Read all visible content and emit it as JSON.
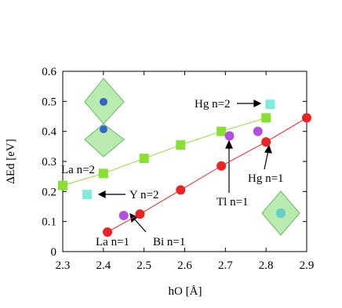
{
  "chart_data": {
    "type": "scatter",
    "xlabel": "hO [Å]",
    "ylabel": "ΔEd [eV]",
    "xlim": [
      2.3,
      2.9
    ],
    "ylim": [
      0,
      0.6
    ],
    "xticks": [
      2.3,
      2.4,
      2.5,
      2.6,
      2.7,
      2.8,
      2.9
    ],
    "yticks": [
      0,
      0.1,
      0.2,
      0.3,
      0.4,
      0.5,
      0.6
    ],
    "series": [
      {
        "color": "#ee2222",
        "marker": "circle",
        "line": true,
        "x": [
          2.41,
          2.49,
          2.59,
          2.69,
          2.8,
          2.9
        ],
        "values": [
          0.065,
          0.125,
          0.205,
          0.285,
          0.365,
          0.445
        ]
      },
      {
        "color": "#88e030",
        "marker": "square",
        "line": true,
        "x": [
          2.3,
          2.4,
          2.5,
          2.59,
          2.69,
          2.8
        ],
        "values": [
          0.22,
          0.26,
          0.31,
          0.355,
          0.4,
          0.445
        ]
      },
      {
        "color": "#b050e0",
        "marker": "circle",
        "line": false,
        "x": [
          2.45,
          2.71,
          2.78
        ],
        "values": [
          0.12,
          0.385,
          0.4
        ]
      },
      {
        "color": "#80ece0",
        "marker": "square",
        "line": false,
        "x": [
          2.36,
          2.81
        ],
        "values": [
          0.19,
          0.49
        ]
      }
    ],
    "annotations": [
      "Hg n=2",
      "La n=2",
      "Y n=2",
      "La n=1",
      "Bi n=1",
      "Tl n=1",
      "Hg n=1"
    ]
  }
}
